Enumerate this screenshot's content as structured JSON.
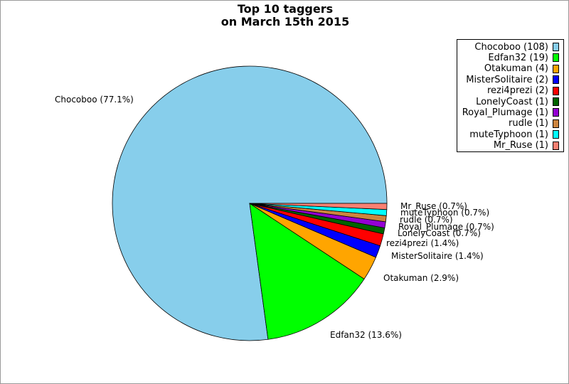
{
  "chart_data": {
    "type": "pie",
    "title": [
      "Top 10 taggers",
      "on March 15th 2015"
    ],
    "legend_position": "top-right",
    "slices": [
      {
        "name": "Chocoboo",
        "value": 108,
        "percent": 77.1,
        "color": "#87ceeb",
        "legend_label": "Chocoboo (108)",
        "slice_label": "Chocoboo (77.1%)"
      },
      {
        "name": "Edfan32",
        "value": 19,
        "percent": 13.6,
        "color": "#00ff00",
        "legend_label": "Edfan32 (19)",
        "slice_label": "Edfan32 (13.6%)"
      },
      {
        "name": "Otakuman",
        "value": 4,
        "percent": 2.9,
        "color": "#ffa500",
        "legend_label": "Otakuman (4)",
        "slice_label": "Otakuman (2.9%)"
      },
      {
        "name": "MisterSolitaire",
        "value": 2,
        "percent": 1.4,
        "color": "#0000ff",
        "legend_label": "MisterSolitaire (2)",
        "slice_label": "MisterSolitaire (1.4%)"
      },
      {
        "name": "rezi4prezi",
        "value": 2,
        "percent": 1.4,
        "color": "#ff0000",
        "legend_label": "rezi4prezi (2)",
        "slice_label": "rezi4prezi (1.4%)"
      },
      {
        "name": "LonelyCoast",
        "value": 1,
        "percent": 0.7,
        "color": "#006400",
        "legend_label": "LonelyCoast (1)",
        "slice_label": "LonelyCoast (0.7%)"
      },
      {
        "name": "Royal_Plumage",
        "value": 1,
        "percent": 0.7,
        "color": "#9400d3",
        "legend_label": "Royal_Plumage (1)",
        "slice_label": "Royal_Plumage (0.7%)"
      },
      {
        "name": "rudle",
        "value": 1,
        "percent": 0.7,
        "color": "#cd853f",
        "legend_label": "rudle (1)",
        "slice_label": "rudle (0.7%)"
      },
      {
        "name": "muteTyphoon",
        "value": 1,
        "percent": 0.7,
        "color": "#00ffff",
        "legend_label": "muteTyphoon (1)",
        "slice_label": "muteTyphoon (0.7%)"
      },
      {
        "name": "Mr_Ruse",
        "value": 1,
        "percent": 0.7,
        "color": "#fa8072",
        "legend_label": "Mr_Ruse (1)",
        "slice_label": "Mr_Ruse (0.7%)"
      }
    ]
  }
}
